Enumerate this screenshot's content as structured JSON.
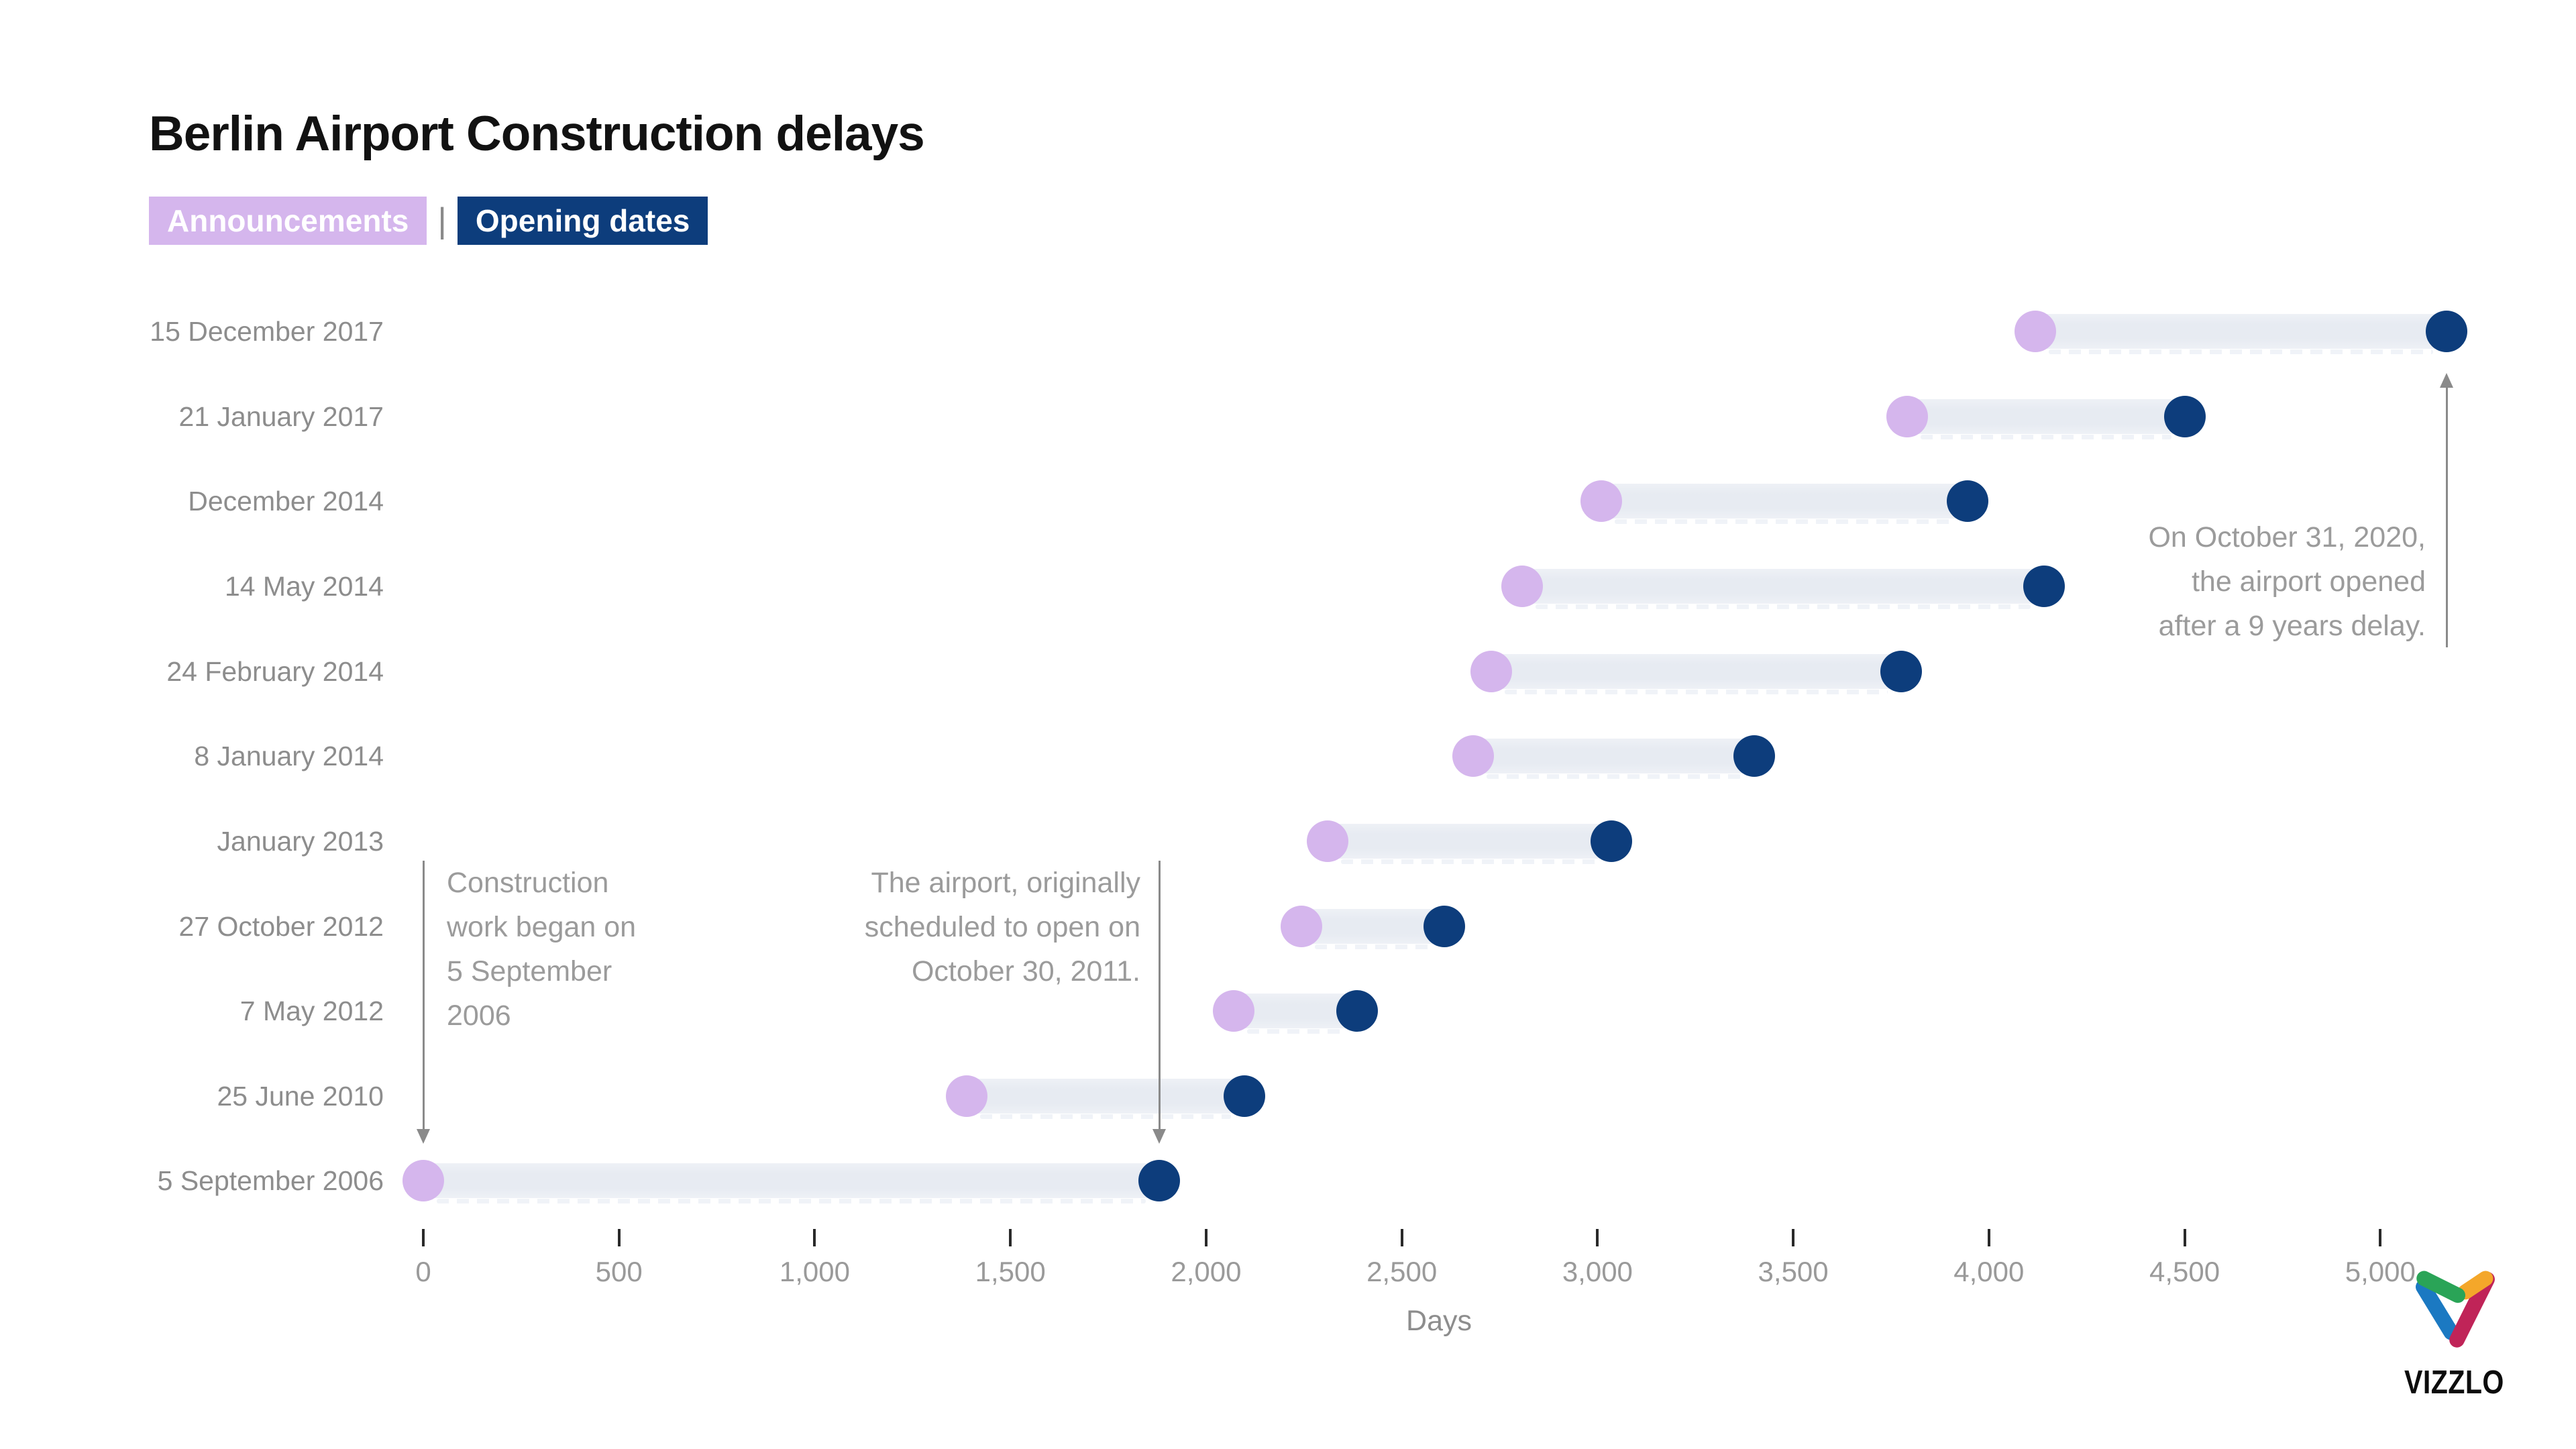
{
  "header": {
    "legend_separator": "|"
  },
  "chart_data": {
    "type": "dumbbell",
    "title": "Berlin Airport Construction delays",
    "xlabel": "Days",
    "grid": false,
    "legend_position": "top-left",
    "xlim": [
      0,
      5250
    ],
    "x_ticks": [
      {
        "value": 0,
        "label": "0"
      },
      {
        "value": 500,
        "label": "500"
      },
      {
        "value": 1000,
        "label": "1,000"
      },
      {
        "value": 1500,
        "label": "1,500"
      },
      {
        "value": 2000,
        "label": "2,000"
      },
      {
        "value": 2500,
        "label": "2,500"
      },
      {
        "value": 3000,
        "label": "3,000"
      },
      {
        "value": 3500,
        "label": "3,500"
      },
      {
        "value": 4000,
        "label": "4,000"
      },
      {
        "value": 4500,
        "label": "4,500"
      },
      {
        "value": 5000,
        "label": "5,000"
      }
    ],
    "categories": [
      "15 December 2017",
      "21 January 2017",
      "December 2014",
      "14 May 2014",
      "24 February 2014",
      "8 January 2014",
      "January 2013",
      "27 October 2012",
      "7 May 2012",
      "25 June 2010",
      "5 September 2006"
    ],
    "series": [
      {
        "name": "Announcements",
        "color": "#d5b6ed",
        "values": [
          4119,
          3791,
          3010,
          2808,
          2729,
          2682,
          2310,
          2244,
          2071,
          1389,
          0
        ]
      },
      {
        "name": "Opening dates",
        "color": "#0d3d7c",
        "values": [
          5170,
          4500,
          3945,
          4140,
          3775,
          3400,
          3035,
          2609,
          2385,
          2098,
          1881
        ]
      }
    ],
    "bar_color": "#e8ecf3",
    "annotations": [
      {
        "text": "Construction work began on 5 September 2006",
        "lines": [
          "Construction",
          "work began on",
          "5 September",
          "2006"
        ],
        "align": "left",
        "arrow_day": 0,
        "arrow_dir": "down"
      },
      {
        "text": "The airport, originally scheduled to open on October 30, 2011.",
        "lines": [
          "The airport, originally",
          "scheduled to open on",
          "October 30, 2011."
        ],
        "align": "right",
        "arrow_day": 1881,
        "arrow_dir": "down"
      },
      {
        "text": "On October 31, 2020, the airport opened after a 9 years delay.",
        "lines": [
          "On October 31, 2020,",
          "the airport opened",
          "after a 9 years delay."
        ],
        "align": "right",
        "arrow_day": 5170,
        "arrow_dir": "up"
      }
    ]
  },
  "footer": {
    "brand": "VIZZLO",
    "logo_colors": {
      "green": "#2aa457",
      "yellow": "#f4a72a",
      "blue": "#1b79c2",
      "crimson": "#c02458"
    }
  }
}
